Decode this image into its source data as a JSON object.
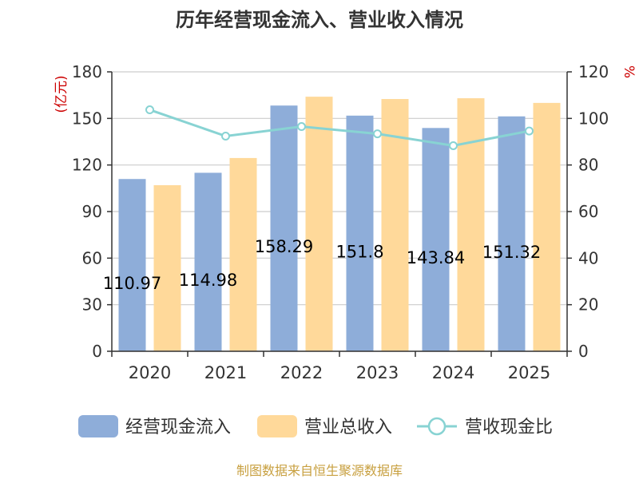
{
  "chart_data": {
    "type": "bar",
    "title": "历年经营现金流入、营业收入情况",
    "categories": [
      "2020",
      "2021",
      "2022",
      "2023",
      "2024",
      "2025"
    ],
    "series": [
      {
        "name": "经营现金流入",
        "type": "bar",
        "axis": "left",
        "values": [
          110.97,
          114.98,
          158.29,
          151.8,
          143.84,
          151.32
        ],
        "data_labels": [
          "110.97",
          "114.98",
          "158.29",
          "151.8",
          "143.84",
          "151.32"
        ],
        "color": "#8eadd9"
      },
      {
        "name": "营业总收入",
        "type": "bar",
        "axis": "left",
        "values": [
          107.0,
          124.5,
          164.0,
          162.5,
          163.0,
          160.0
        ],
        "color": "#ffd99a"
      },
      {
        "name": "营收现金比",
        "type": "line",
        "axis": "right",
        "values": [
          103.7,
          92.4,
          96.5,
          93.4,
          88.3,
          94.6
        ],
        "color": "#88d3d3"
      }
    ],
    "y_left": {
      "unit": "(亿元)",
      "min": 0,
      "max": 180,
      "ticks": [
        0,
        30,
        60,
        90,
        120,
        150,
        180
      ]
    },
    "y_right": {
      "unit": "%",
      "min": 0,
      "max": 120,
      "ticks": [
        0,
        20,
        40,
        60,
        80,
        100,
        120
      ]
    },
    "grid": true,
    "legend_position": "bottom",
    "source": "制图数据来自恒生聚源数据库",
    "colors": {
      "axis": "#333333",
      "grid": "#cccccc",
      "unit": "#cc0000",
      "source": "#c8a040",
      "title": "#333333"
    }
  }
}
